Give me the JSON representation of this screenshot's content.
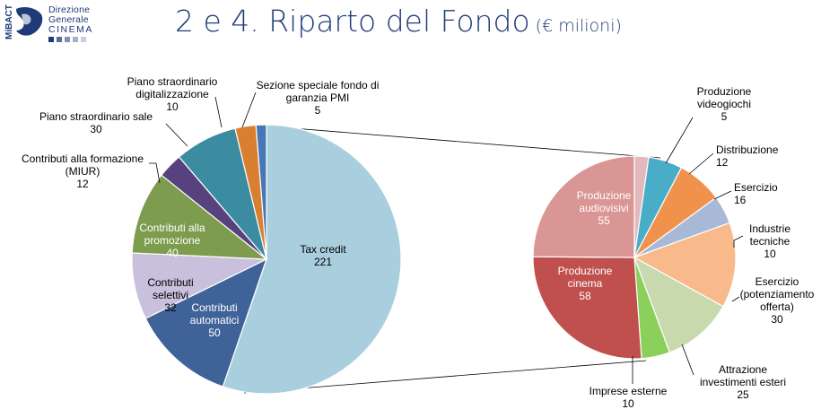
{
  "header": {
    "logo_vertical_text": "MiBACT",
    "logo_line1": "Direzione",
    "logo_line2": "Generale",
    "logo_line3": "CINEMA",
    "title_main": "2 e 4. Riparto del Fondo",
    "title_sub": "(€ milioni)"
  },
  "chart_data": [
    {
      "type": "pie",
      "title": "",
      "slices": [
        {
          "label": "Tax credit",
          "value": 221,
          "color": "#a9cfdf"
        },
        {
          "label": "Contributi automatici",
          "value": 50,
          "color": "#3f6399"
        },
        {
          "label": "Contributi selettivi",
          "value": 32,
          "color": "#c9c0dd"
        },
        {
          "label": "Contributi alla promozione",
          "value": 40,
          "color": "#7d9c4d"
        },
        {
          "label": "Contributi alla formazione (MIUR)",
          "value": 12,
          "color": "#58427e"
        },
        {
          "label": "Piano straordinario sale",
          "value": 30,
          "color": "#3b8ba1"
        },
        {
          "label": "Piano straordinario digitalizzazione",
          "value": 10,
          "color": "#d97f31"
        },
        {
          "label": "Sezione speciale fondo di garanzia PMI",
          "value": 5,
          "color": "#4778b3"
        }
      ]
    },
    {
      "type": "pie",
      "title": "",
      "breakdown_of": "Tax credit",
      "slices": [
        {
          "label": "Produzione videogiochi",
          "value": 5,
          "color": "#e3b8bd"
        },
        {
          "label": "Distribuzione",
          "value": 12,
          "color": "#4aadc7"
        },
        {
          "label": "Esercizio",
          "value": 16,
          "color": "#f0924c"
        },
        {
          "label": "Industrie tecniche",
          "value": 10,
          "color": "#a8b9d8"
        },
        {
          "label": "Esercizio (potenziamento offerta)",
          "value": 30,
          "color": "#f8b98b"
        },
        {
          "label": "Attrazione investimenti esteri",
          "value": 25,
          "color": "#c8d9ae"
        },
        {
          "label": "Imprese esterne",
          "value": 10,
          "color": "#8bd05a"
        },
        {
          "label": "Produzione cinema",
          "value": 58,
          "color": "#c0504d"
        },
        {
          "label": "Produzione audiovisivi",
          "value": 55,
          "color": "#d99694"
        }
      ]
    }
  ]
}
